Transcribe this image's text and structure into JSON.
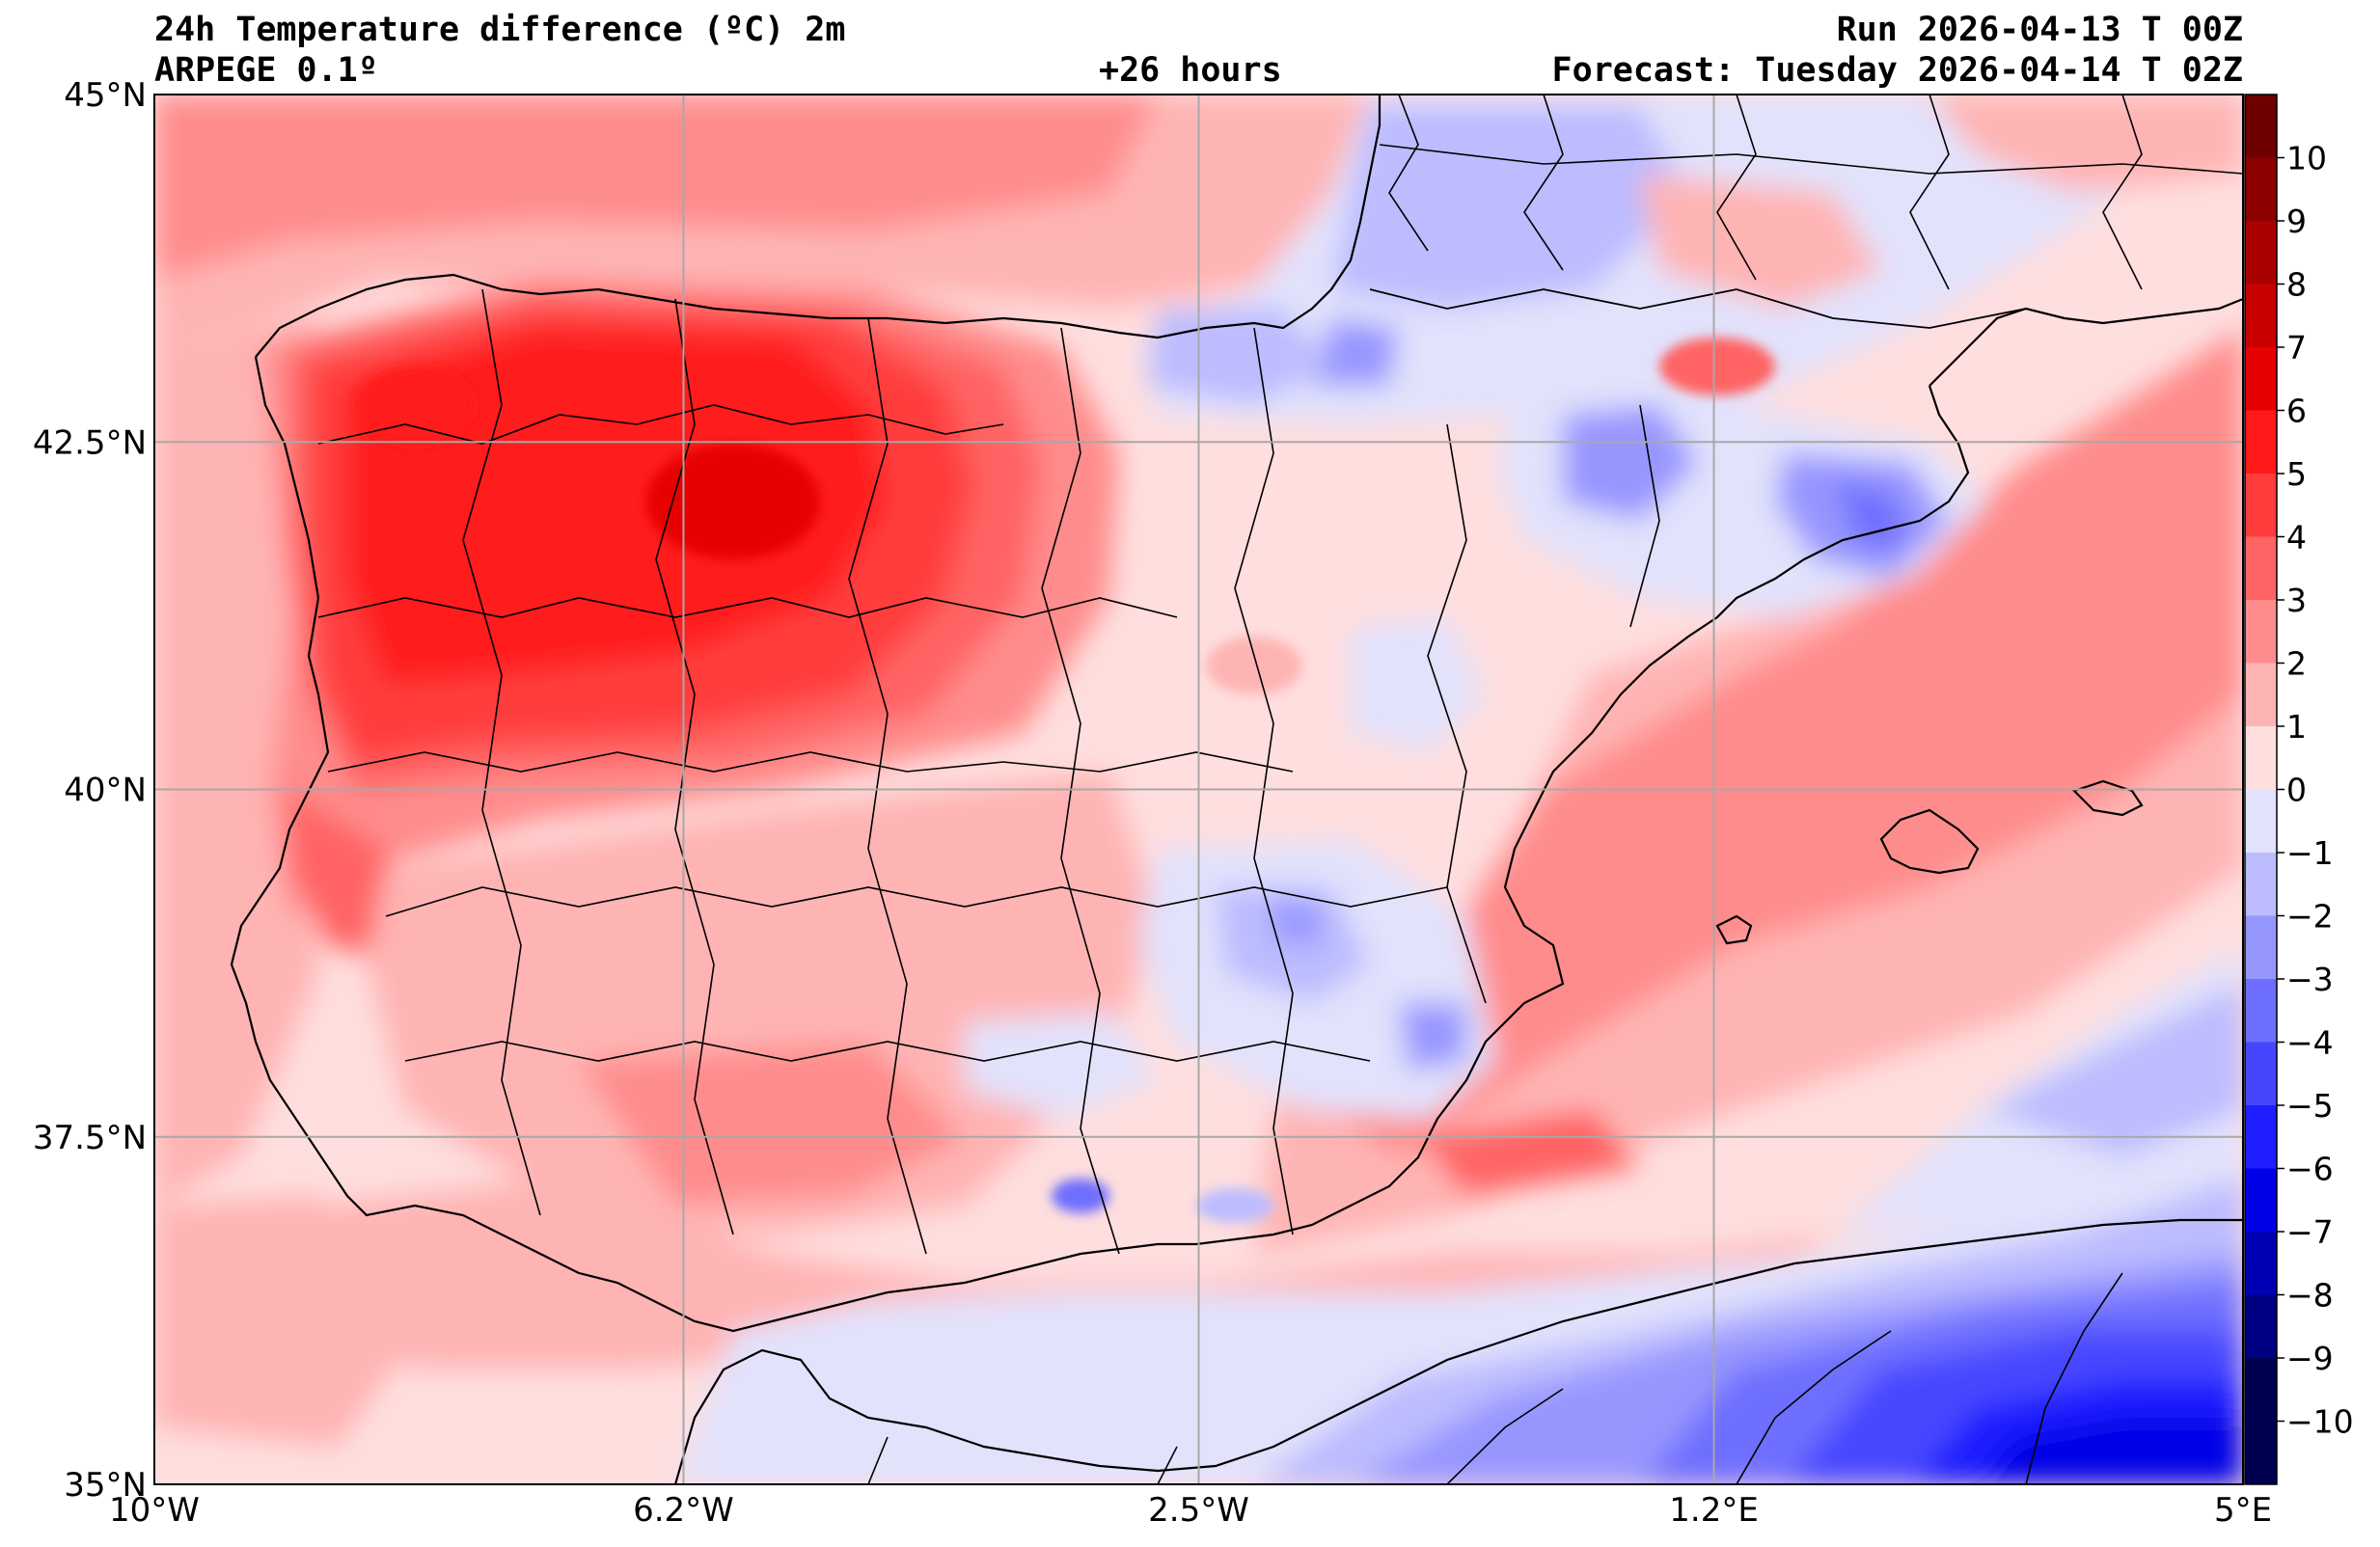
{
  "header": {
    "title": "24h Temperature difference (ºC) 2m",
    "model": "ARPEGE 0.1º",
    "lead_time": "+26 hours",
    "run": "Run 2026-04-13 T 00Z",
    "forecast": "Forecast: Tuesday 2026-04-14 T 02Z"
  },
  "map": {
    "lon_range": [
      -10,
      5
    ],
    "lat_range": [
      35,
      45
    ],
    "lon_ticks": [
      {
        "value": -10,
        "label": "10°W"
      },
      {
        "value": -6.2,
        "label": "6.2°W"
      },
      {
        "value": -2.5,
        "label": "2.5°W"
      },
      {
        "value": 1.2,
        "label": "1.2°E"
      },
      {
        "value": 5,
        "label": "5°E"
      }
    ],
    "lat_ticks": [
      {
        "value": 45,
        "label": "45°N"
      },
      {
        "value": 42.5,
        "label": "42.5°N"
      },
      {
        "value": 40,
        "label": "40°N"
      },
      {
        "value": 37.5,
        "label": "37.5°N"
      },
      {
        "value": 35,
        "label": "35°N"
      }
    ],
    "grid": true
  },
  "colorbar": {
    "levels": [
      10,
      9,
      8,
      7,
      6,
      5,
      4,
      3,
      2,
      1,
      0,
      -1,
      -2,
      -3,
      -4,
      -5,
      -6,
      -7,
      -8,
      -9,
      -10
    ],
    "labels": [
      "10",
      "9",
      "8",
      "7",
      "6",
      "5",
      "4",
      "3",
      "2",
      "1",
      "0",
      "−1",
      "−2",
      "−3",
      "−4",
      "−5",
      "−6",
      "−7",
      "−8",
      "−9",
      "−10"
    ],
    "colors": [
      "#6e0000",
      "#8c0000",
      "#aa0000",
      "#c80000",
      "#e60000",
      "#ff1a1a",
      "#ff3c3c",
      "#ff6464",
      "#ff8c8c",
      "#ffb4b4",
      "#ffdede",
      "#e2e2fc",
      "#bcbcff",
      "#9696ff",
      "#6e6eff",
      "#4646ff",
      "#1e1eff",
      "#0000e6",
      "#0000b4",
      "#000082",
      "#000050"
    ]
  }
}
